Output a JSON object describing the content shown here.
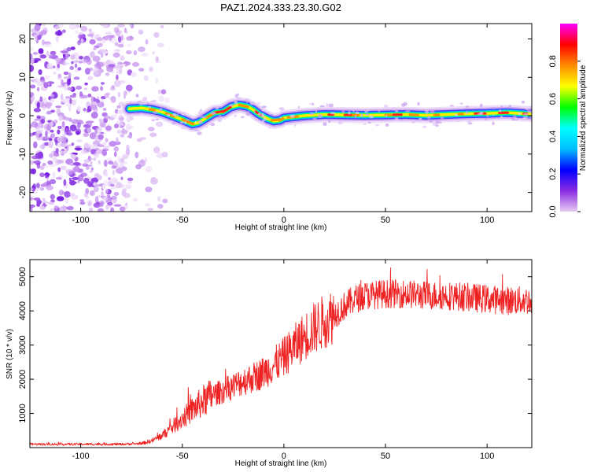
{
  "title": "PAZ1.2024.333.23.30.G02",
  "chart_data": [
    {
      "type": "heatmap",
      "xlabel": "Height of straight line (km)",
      "ylabel": "Frequency (Hz)",
      "xlim": [
        -125,
        122
      ],
      "ylim": [
        -25,
        24
      ],
      "x_ticks": [
        -100,
        -50,
        0,
        50,
        100
      ],
      "y_ticks": [
        -20,
        -10,
        0,
        10,
        20
      ],
      "colorbar": {
        "label": "Normalized spectral amplitude",
        "range": [
          0,
          1
        ],
        "ticks": [
          "0.0",
          "0.2",
          "0.4",
          "0.6",
          "0.8"
        ],
        "colors": [
          "#e6ccf2",
          "#8a2be2",
          "#0000ff",
          "#00bfff",
          "#00ffff",
          "#00ff00",
          "#ffff00",
          "#ff8c00",
          "#ff0000",
          "#ff00ff"
        ]
      },
      "noise_region_x": [
        -125,
        -75
      ],
      "ridge": {
        "x": [
          -76,
          -70,
          -65,
          -60,
          -55,
          -50,
          -45,
          -42,
          -38,
          -34,
          -30,
          -26,
          -22,
          -18,
          -15,
          -12,
          -8,
          -5,
          -2,
          0,
          5,
          10,
          20,
          30,
          40,
          50,
          60,
          70,
          80,
          90,
          100,
          110,
          122
        ],
        "y": [
          1.8,
          2.0,
          1.6,
          1.0,
          0.0,
          -1.0,
          -2.2,
          -1.8,
          -0.5,
          0.8,
          1.0,
          2.3,
          2.8,
          2.4,
          1.5,
          0.3,
          -0.8,
          -1.4,
          -1.2,
          -0.6,
          -0.3,
          0.0,
          0.3,
          0.2,
          0.1,
          0.2,
          0.3,
          0.1,
          0.3,
          0.5,
          0.6,
          0.8,
          0.4
        ]
      }
    },
    {
      "type": "line",
      "xlabel": "Height of straight line (km)",
      "ylabel": "SNR (10 * v/v)",
      "xlim": [
        -125,
        122
      ],
      "ylim": [
        0,
        5500
      ],
      "x_ticks": [
        -100,
        -50,
        0,
        50,
        100
      ],
      "y_ticks": [
        1000,
        2000,
        3000,
        4000,
        5000
      ],
      "color": "#ee2222",
      "trend": {
        "x": [
          -125,
          -80,
          -70,
          -65,
          -60,
          -55,
          -50,
          -45,
          -40,
          -35,
          -30,
          -25,
          -20,
          -15,
          -10,
          -5,
          0,
          5,
          10,
          15,
          20,
          25,
          30,
          35,
          40,
          50,
          60,
          70,
          80,
          90,
          100,
          110,
          122
        ],
        "y": [
          100,
          100,
          120,
          200,
          350,
          600,
          850,
          1100,
          1350,
          1550,
          1650,
          1800,
          1950,
          2050,
          2200,
          2400,
          2650,
          2950,
          3250,
          3500,
          3700,
          3900,
          4150,
          4350,
          4450,
          4500,
          4500,
          4450,
          4450,
          4400,
          4350,
          4300,
          4300
        ]
      }
    }
  ]
}
